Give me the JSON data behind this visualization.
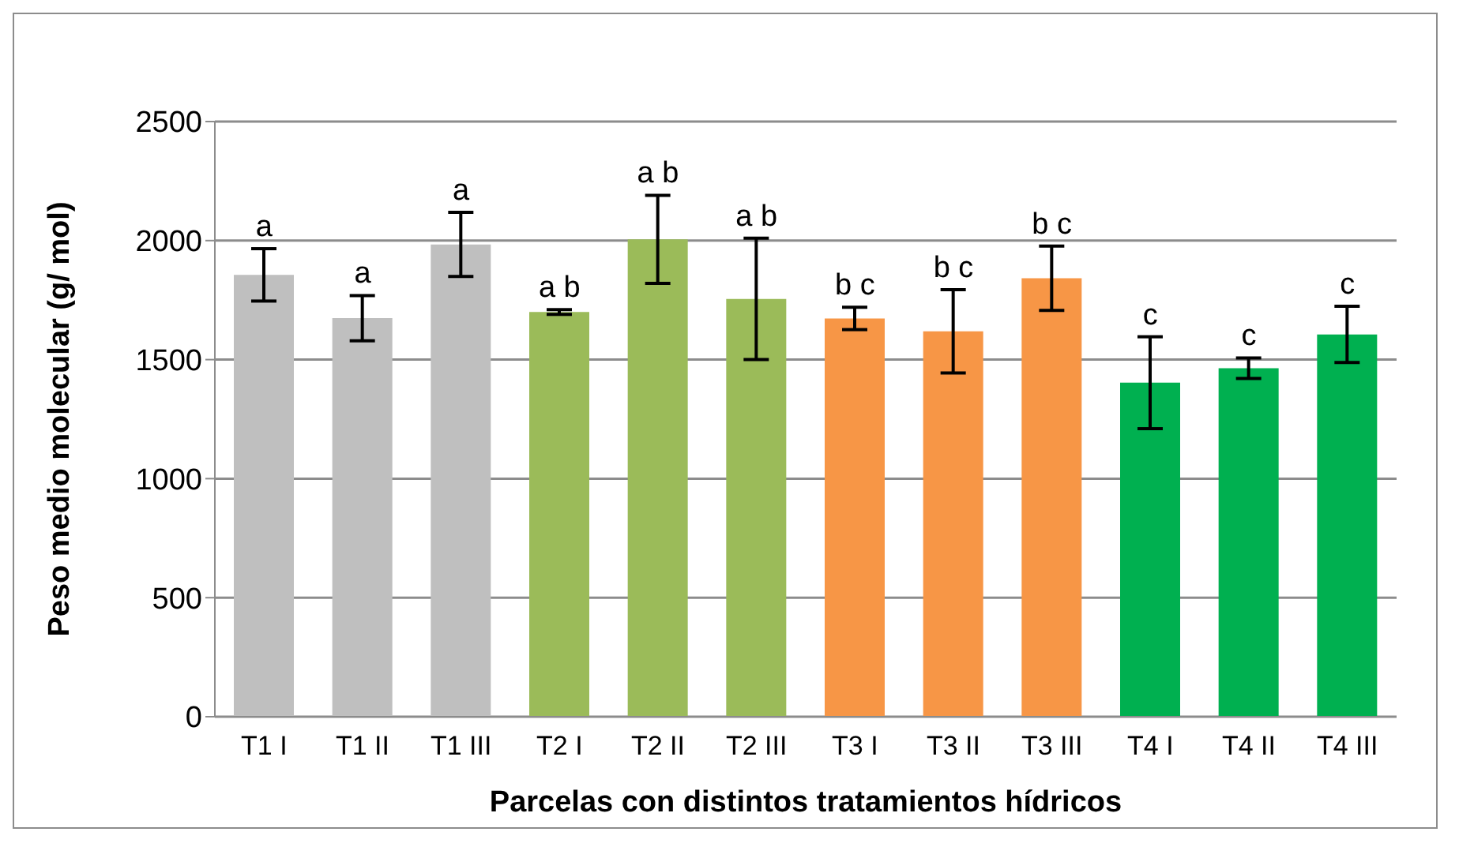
{
  "chart_data": {
    "type": "bar",
    "xlabel": "Parcelas con distintos tratamientos hídricos",
    "ylabel": "Peso medio molecular (g/ mol)",
    "categories": [
      "T1 I",
      "T1 II",
      "T1 III",
      "T2 I",
      "T2 II",
      "T2 III",
      "T3 I",
      "T3 II",
      "T3 III",
      "T4 I",
      "T4 II",
      "T4 III"
    ],
    "values": [
      1856,
      1674,
      1984,
      1700,
      2005,
      1755,
      1673,
      1619,
      1842,
      1403,
      1464,
      1606
    ],
    "errors": [
      110,
      95,
      135,
      10,
      185,
      255,
      47,
      175,
      135,
      193,
      43,
      118
    ],
    "colors": [
      "#bfbfbf",
      "#bfbfbf",
      "#bfbfbf",
      "#9bbb59",
      "#9bbb59",
      "#9bbb59",
      "#f79646",
      "#f79646",
      "#f79646",
      "#00b050",
      "#00b050",
      "#00b050"
    ],
    "ylim": [
      0,
      2500
    ],
    "yticks": [
      0,
      500,
      1000,
      1500,
      2000,
      2500
    ],
    "grid": "y",
    "annotations": [
      {
        "text": "a",
        "x": "T1 I",
        "y": 1966
      },
      {
        "text": "a",
        "x": "T1 II",
        "y": 1769
      },
      {
        "text": "a",
        "x": "T1 III",
        "y": 2119
      },
      {
        "text": "a b",
        "x": "T2 I",
        "y": 1710
      },
      {
        "text": "a b",
        "x": "T2 II",
        "y": 2190
      },
      {
        "text": "a b",
        "x": "T2 III",
        "y": 2010
      },
      {
        "text": "b c",
        "x": "T3 I",
        "y": 1720
      },
      {
        "text": "b c",
        "x": "T3 II",
        "y": 1794
      },
      {
        "text": "b c",
        "x": "T3 III",
        "y": 1977
      },
      {
        "text": "c",
        "x": "T4 I",
        "y": 1596
      },
      {
        "text": "c",
        "x": "T4 II",
        "y": 1507
      },
      {
        "text": "c",
        "x": "T4 III",
        "y": 1724
      }
    ]
  }
}
